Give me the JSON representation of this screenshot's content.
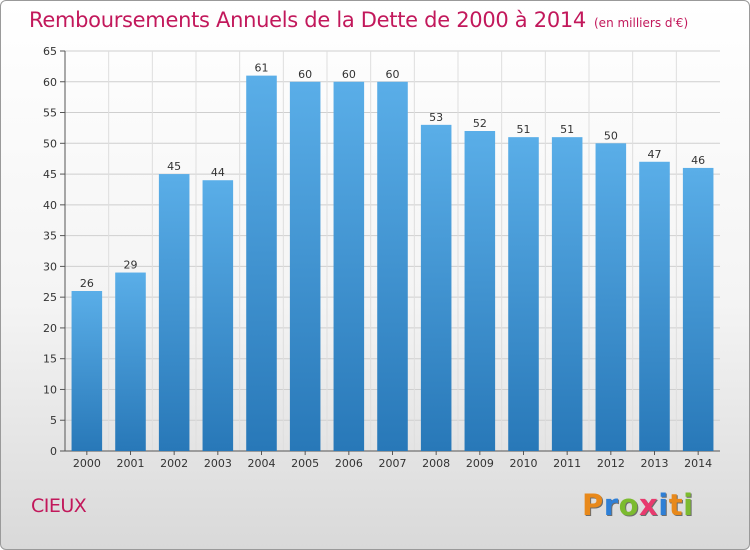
{
  "title": "Remboursements Annuels de la Dette de 2000 à 2014",
  "unit": "(en milliers d'€)",
  "city": "CIEUX",
  "logo": {
    "letters": [
      "P",
      "r",
      "o",
      "x",
      "i",
      "t",
      "i"
    ],
    "colors": [
      "#e8891b",
      "#2e7fd6",
      "#7cbb2f",
      "#e83a6e",
      "#2e7fd6",
      "#e8891b",
      "#7cbb2f"
    ]
  },
  "chart_data": {
    "type": "bar",
    "title": "Remboursements Annuels de la Dette de 2000 à 2014",
    "xlabel": "",
    "ylabel": "",
    "categories": [
      "2000",
      "2001",
      "2002",
      "2003",
      "2004",
      "2005",
      "2006",
      "2007",
      "2008",
      "2009",
      "2010",
      "2011",
      "2012",
      "2013",
      "2014"
    ],
    "values": [
      26,
      29,
      45,
      44,
      61,
      60,
      60,
      60,
      53,
      52,
      51,
      51,
      50,
      47,
      46
    ],
    "ylim": [
      0,
      65
    ],
    "yticks": [
      0,
      5,
      10,
      15,
      20,
      25,
      30,
      35,
      40,
      45,
      50,
      55,
      60,
      65
    ],
    "grid": true,
    "bar_color_top": "#5aaee8",
    "bar_color_bottom": "#2878b8"
  }
}
